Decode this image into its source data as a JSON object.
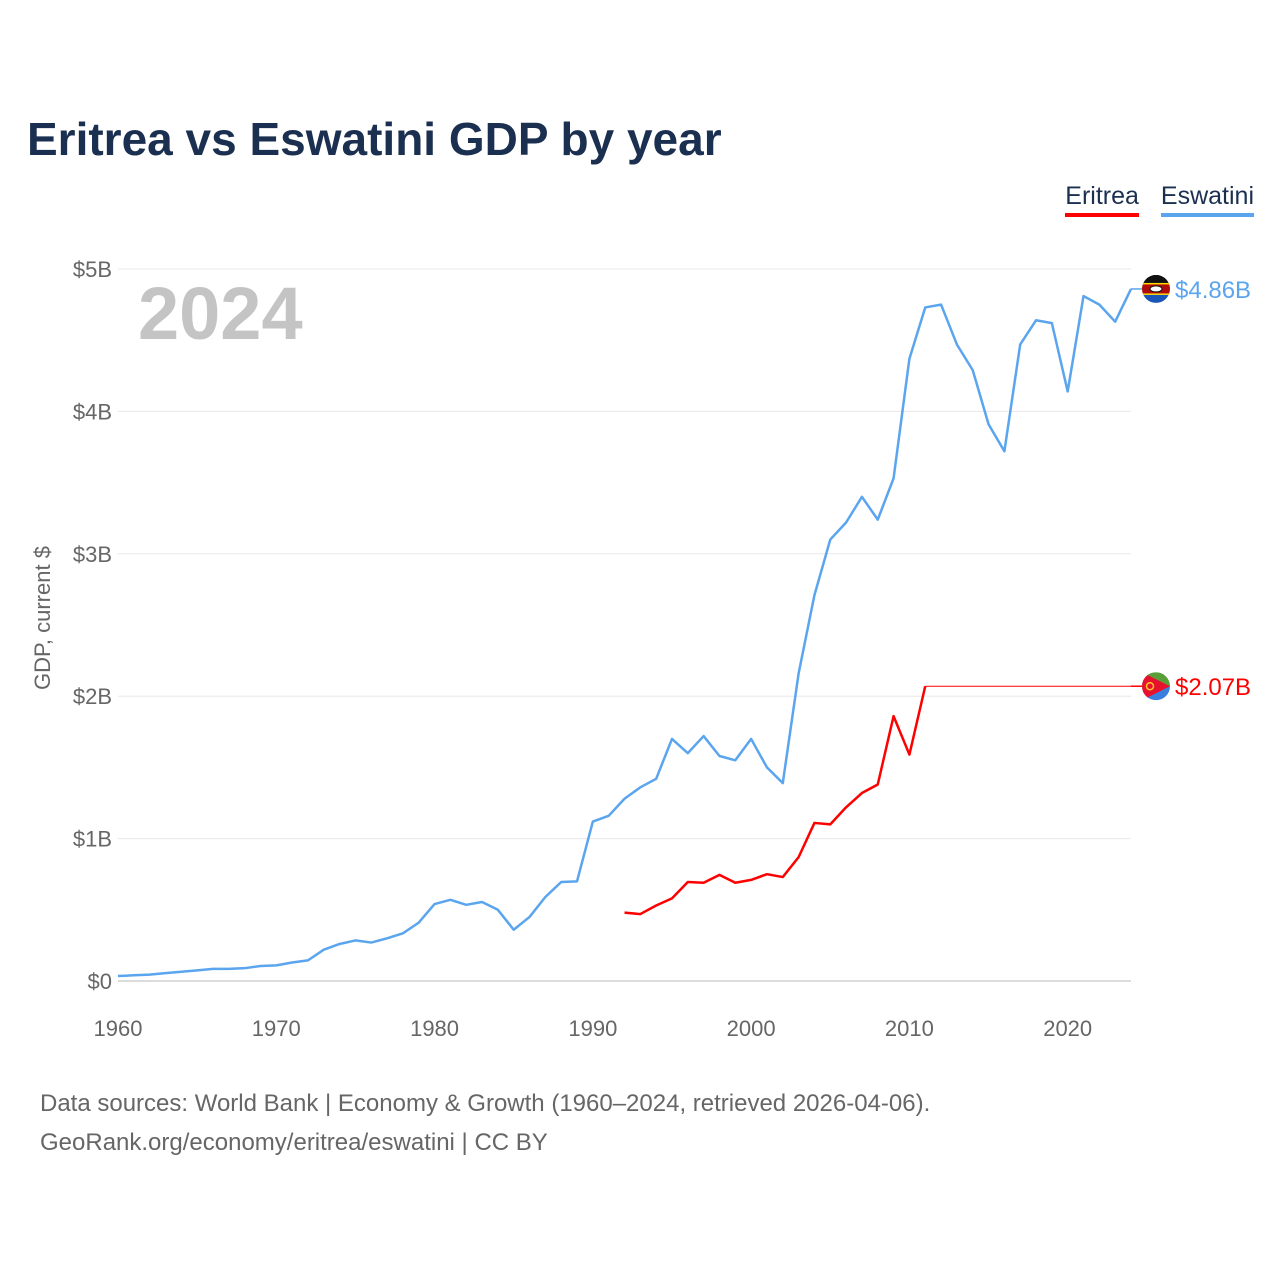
{
  "title": "Eritrea vs Eswatini GDP by year",
  "footer": {
    "line1": "Data sources: World Bank | Economy & Growth (1960–2024, retrieved 2026-04-06).",
    "line2": "GeoRank.org/economy/eritrea/eswatini | CC BY"
  },
  "chart_data": {
    "type": "line",
    "title": "Eritrea vs Eswatini GDP by year",
    "xlabel": "",
    "ylabel": "GDP, current $",
    "xlim": [
      1960,
      2024
    ],
    "ylim": [
      0,
      5
    ],
    "y_unit": "billion USD",
    "xticks": [
      1960,
      1970,
      1980,
      1990,
      2000,
      2010,
      2020
    ],
    "xtick_labels": [
      "1960",
      "1970",
      "1980",
      "1990",
      "2000",
      "2010",
      "2020"
    ],
    "yticks": [
      0,
      1,
      2,
      3,
      4,
      5
    ],
    "ytick_labels": [
      "$0",
      "$1B",
      "$2B",
      "$3B",
      "$4B",
      "$5B"
    ],
    "grid": true,
    "legend_position": "top-right",
    "year_label": "2024",
    "series": [
      {
        "name": "Eritrea",
        "color": "#ff0000",
        "end_label": "$2.07B",
        "icon": "eritrea-flag-icon",
        "x": [
          1992,
          1993,
          1994,
          1995,
          1996,
          1997,
          1998,
          1999,
          2000,
          2001,
          2002,
          2003,
          2004,
          2005,
          2006,
          2007,
          2008,
          2009,
          2010,
          2011
        ],
        "values": [
          0.48,
          0.47,
          0.53,
          0.58,
          0.695,
          0.69,
          0.745,
          0.69,
          0.71,
          0.75,
          0.73,
          0.87,
          1.11,
          1.1,
          1.22,
          1.32,
          1.38,
          1.86,
          1.59,
          2.07
        ],
        "carry_forward_to": 2024
      },
      {
        "name": "Eswatini",
        "color": "#5aa5ee",
        "end_label": "$4.86B",
        "icon": "eswatini-flag-icon",
        "x": [
          1960,
          1961,
          1962,
          1963,
          1964,
          1965,
          1966,
          1967,
          1968,
          1969,
          1970,
          1971,
          1972,
          1973,
          1974,
          1975,
          1976,
          1977,
          1978,
          1979,
          1980,
          1981,
          1982,
          1983,
          1984,
          1985,
          1986,
          1987,
          1988,
          1989,
          1990,
          1991,
          1992,
          1993,
          1994,
          1995,
          1996,
          1997,
          1998,
          1999,
          2000,
          2001,
          2002,
          2003,
          2004,
          2005,
          2006,
          2007,
          2008,
          2009,
          2010,
          2011,
          2012,
          2013,
          2014,
          2015,
          2016,
          2017,
          2018,
          2019,
          2020,
          2021,
          2022,
          2023,
          2024
        ],
        "values": [
          0.035,
          0.04,
          0.045,
          0.055,
          0.065,
          0.075,
          0.085,
          0.085,
          0.09,
          0.105,
          0.11,
          0.13,
          0.145,
          0.22,
          0.26,
          0.285,
          0.27,
          0.3,
          0.335,
          0.41,
          0.54,
          0.57,
          0.535,
          0.555,
          0.5,
          0.36,
          0.45,
          0.59,
          0.695,
          0.7,
          1.12,
          1.16,
          1.28,
          1.36,
          1.42,
          1.7,
          1.6,
          1.72,
          1.58,
          1.55,
          1.7,
          1.5,
          1.39,
          2.16,
          2.71,
          3.1,
          3.22,
          3.4,
          3.24,
          3.53,
          4.37,
          4.73,
          4.75,
          4.47,
          4.29,
          3.91,
          3.72,
          4.47,
          4.64,
          4.62,
          4.14,
          4.81,
          4.75,
          4.63,
          4.86
        ]
      }
    ]
  }
}
